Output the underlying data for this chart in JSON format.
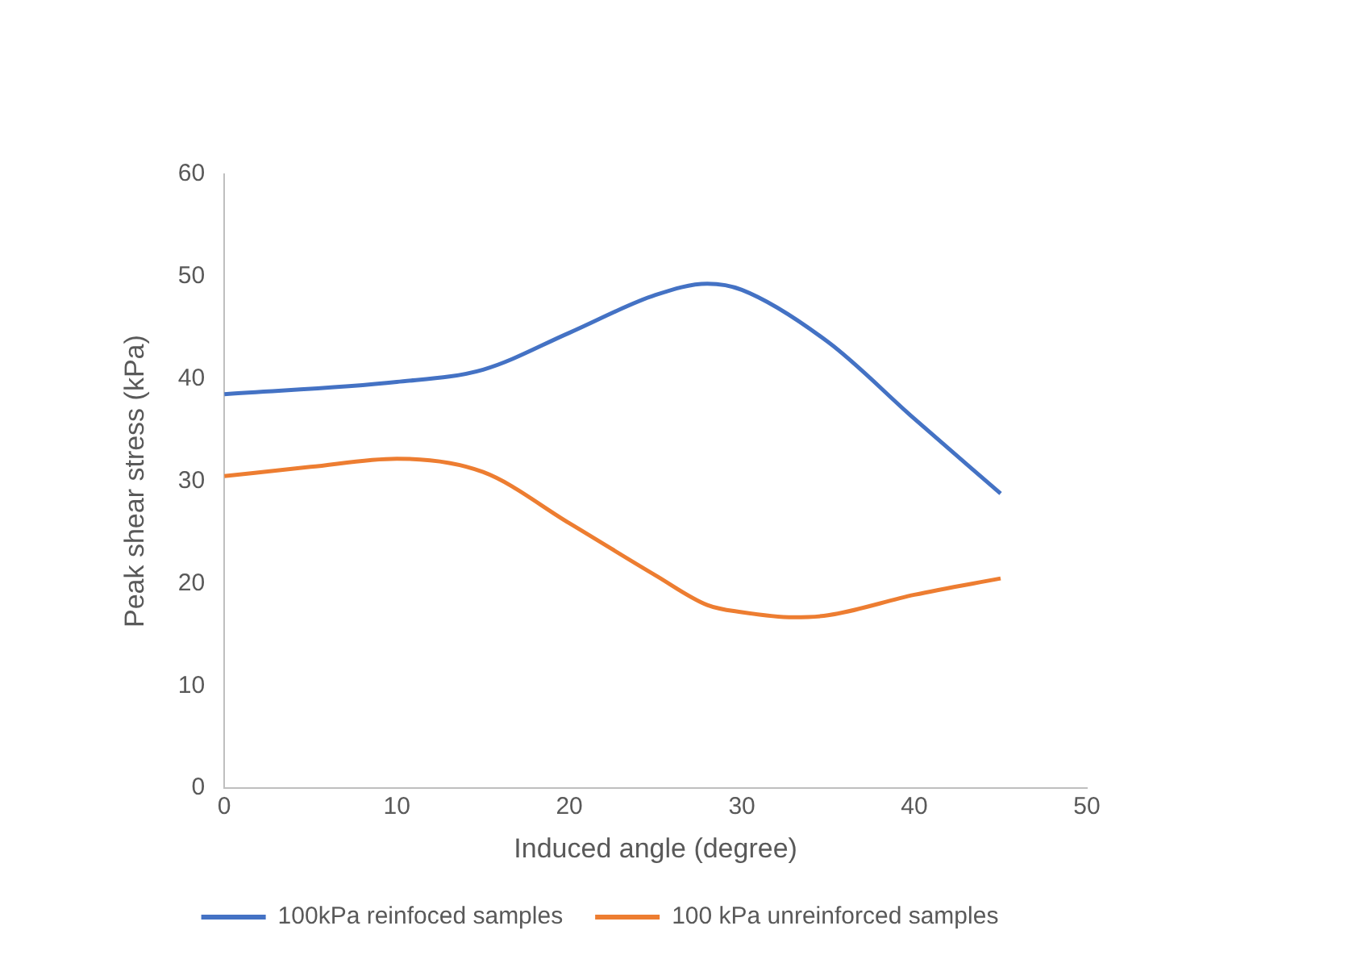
{
  "chart_data": {
    "type": "line",
    "xlabel": "Induced angle (degree)",
    "ylabel": "Peak shear stress (kPa)",
    "xlim": [
      0,
      50
    ],
    "xticks": [
      0,
      10,
      20,
      30,
      40,
      50
    ],
    "ylim": [
      0,
      60
    ],
    "yticks": [
      0,
      10,
      20,
      30,
      40,
      50,
      60
    ],
    "grid": false,
    "legend": "bottom",
    "marker": "none",
    "line_style": "solid",
    "series": [
      {
        "name": "100kPa reinfoced samples",
        "color": "#4472c4",
        "x": [
          0,
          10,
          15,
          20,
          25,
          28,
          30,
          35,
          40,
          45
        ],
        "values": [
          38.5,
          39.7,
          40.9,
          44.5,
          48.2,
          49.3,
          48.7,
          43.6,
          36.1,
          28.8
        ]
      },
      {
        "name": "100 kPa unreinforced samples",
        "color": "#ed7d31",
        "x": [
          0,
          5,
          10,
          15,
          20,
          25,
          28,
          30,
          33,
          35,
          40,
          45
        ],
        "values": [
          30.5,
          31.4,
          32.2,
          30.9,
          25.9,
          20.8,
          17.9,
          17.2,
          16.7,
          16.9,
          18.9,
          20.5
        ]
      }
    ]
  }
}
